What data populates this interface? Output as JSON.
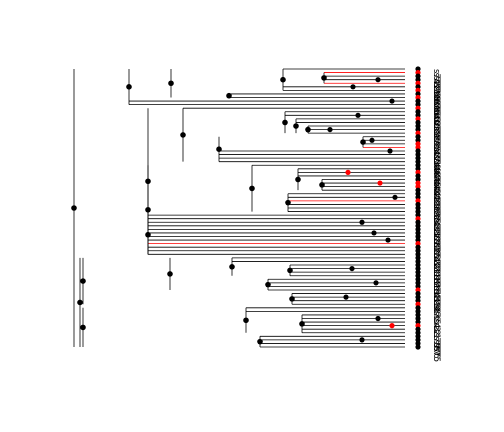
{
  "tree": {
    "type": "phylogenetic-tree",
    "tip_count": 79,
    "tip_labels": [
      "s74",
      "s73",
      "s72",
      "s71",
      "s70",
      "s69",
      "s68",
      "s67",
      "s66",
      "s65",
      "s64",
      "s63",
      "s62",
      "s61",
      "s60",
      "s59",
      "s58",
      "s57",
      "s56",
      "s55",
      "s54",
      "s53",
      "s52",
      "s51",
      "s50",
      "s49",
      "s48",
      "s47",
      "s46",
      "s45",
      "s44",
      "s43",
      "s42",
      "s41",
      "s40",
      "s39",
      "s38",
      "s37",
      "s36",
      "s35",
      "s34",
      "s33",
      "s32",
      "s31",
      "s30",
      "s29",
      "s28",
      "s27",
      "s26",
      "s25",
      "s24",
      "s23",
      "s22",
      "s21",
      "s20",
      "s19",
      "s18",
      "s17",
      "s16",
      "s15",
      "s14",
      "s13",
      "s12",
      "s11",
      "s10",
      "s9",
      "s8",
      "s7",
      "s6",
      "s5",
      "s4",
      "s3",
      "s2",
      "s1",
      "s79",
      "s78",
      "s77",
      "s76",
      "s75"
    ],
    "tip_states": [
      "black",
      "red",
      "black",
      "black",
      "red",
      "black",
      "red",
      "black",
      "red",
      "black",
      "black",
      "red",
      "black",
      "black",
      "red",
      "black",
      "black",
      "black",
      "red",
      "black",
      "black",
      "red",
      "red",
      "black",
      "black",
      "black",
      "black",
      "black",
      "black",
      "red",
      "black",
      "black",
      "red",
      "red",
      "black",
      "black",
      "black",
      "red",
      "black",
      "black",
      "black",
      "black",
      "red",
      "black",
      "black",
      "black",
      "black",
      "black",
      "black",
      "red",
      "black",
      "black",
      "black",
      "black",
      "black",
      "black",
      "black",
      "black",
      "black",
      "black",
      "black",
      "black",
      "red",
      "black",
      "black",
      "black",
      "red",
      "black",
      "black",
      "black",
      "black",
      "black",
      "red",
      "black",
      "black",
      "black",
      "black",
      "black",
      "black"
    ],
    "state_colors": {
      "black": "#000000",
      "red": "#ff0000"
    }
  }
}
